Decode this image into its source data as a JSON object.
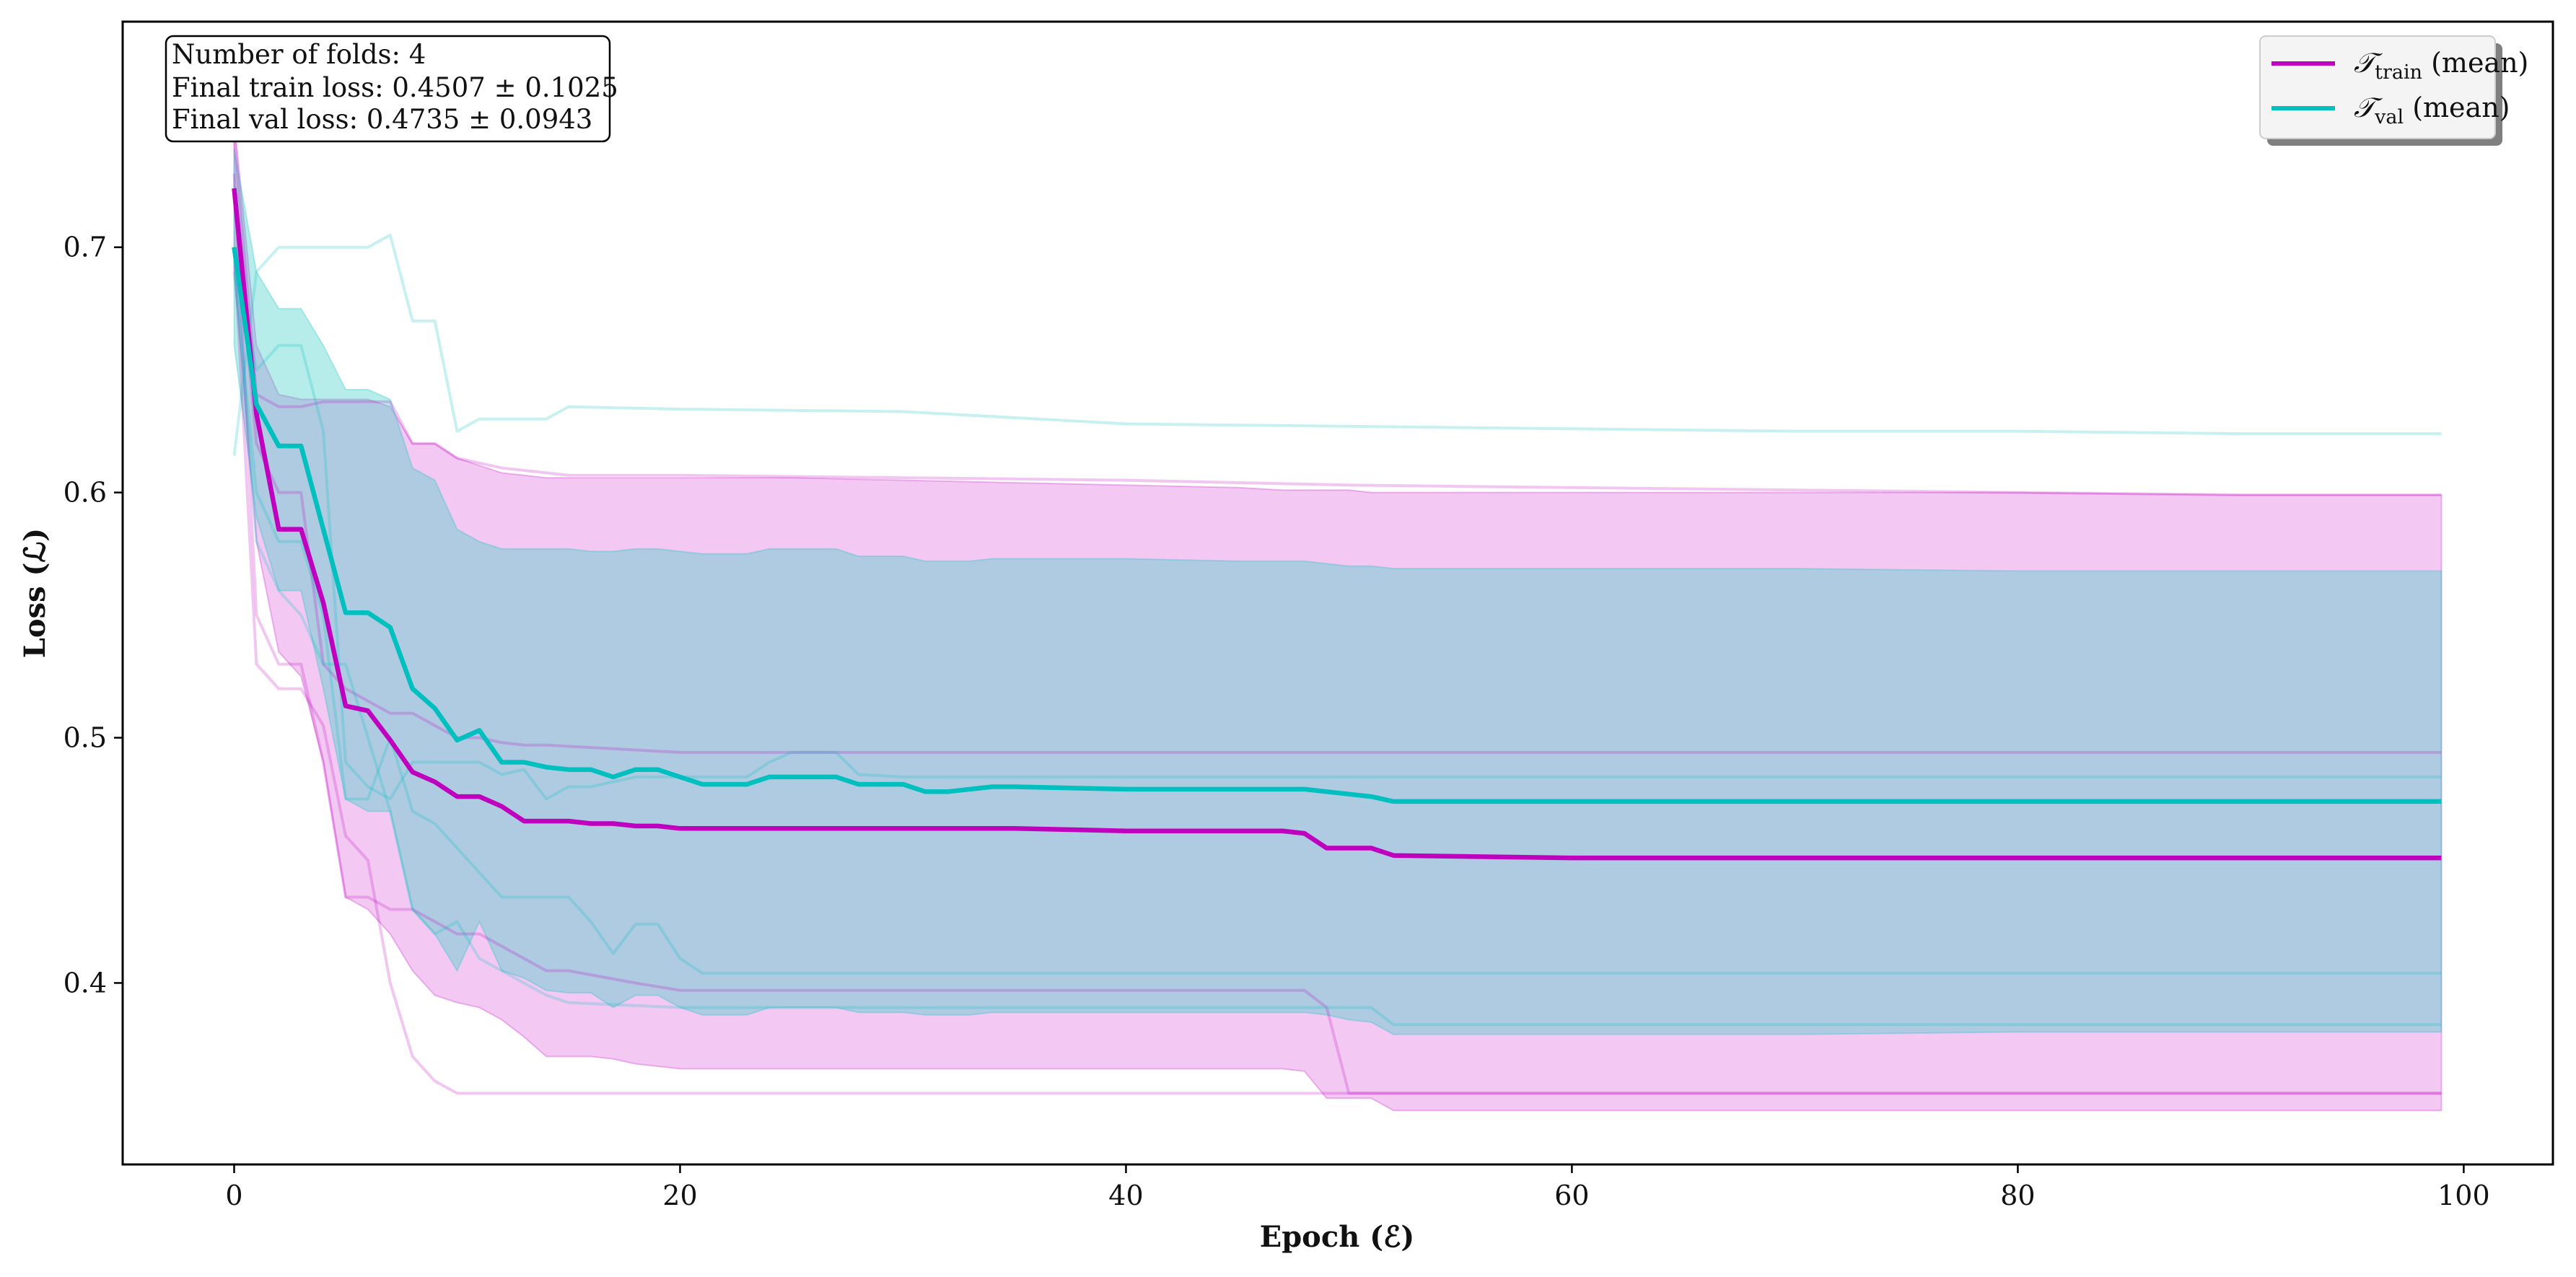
{
  "chart_data": {
    "type": "line",
    "xlabel": "Epoch (ℰ)",
    "ylabel": "Loss (ℒ)",
    "xlim": [
      -5,
      104
    ],
    "ylim": [
      0.326,
      0.792
    ],
    "x_ticks": [
      0,
      20,
      40,
      60,
      80,
      100
    ],
    "y_ticks": [
      0.4,
      0.5,
      0.6,
      0.7
    ],
    "grid": false,
    "legend_position": "top-right",
    "info_box": {
      "position": "top-left",
      "lines": [
        "Number of folds: 4",
        "Final train loss: 0.4507 ± 0.1025",
        "Final val loss: 0.4735 ± 0.0943"
      ]
    },
    "colors": {
      "train": "#bf00bf",
      "val": "#00bfbf",
      "train_band": "#e070e0",
      "val_band": "#40d0c8"
    },
    "series": [
      {
        "name": "𝒯train (mean)",
        "legend_main": "𝒯",
        "legend_sub": "train",
        "legend_suffix": " (mean)",
        "role": "train",
        "x": [
          0,
          1,
          2,
          3,
          4,
          5,
          6,
          7,
          8,
          9,
          10,
          11,
          12,
          13,
          14,
          15,
          16,
          17,
          18,
          19,
          20,
          21,
          25,
          30,
          35,
          40,
          45,
          47,
          48,
          49,
          50,
          51,
          52,
          60,
          70,
          80,
          90,
          99
        ],
        "values": [
          0.724,
          0.632,
          0.585,
          0.585,
          0.555,
          0.513,
          0.511,
          0.499,
          0.486,
          0.482,
          0.476,
          0.476,
          0.472,
          0.466,
          0.466,
          0.466,
          0.465,
          0.465,
          0.464,
          0.464,
          0.463,
          0.463,
          0.463,
          0.463,
          0.463,
          0.462,
          0.462,
          0.462,
          0.461,
          0.455,
          0.455,
          0.455,
          0.452,
          0.451,
          0.451,
          0.451,
          0.451,
          0.451
        ],
        "std_lower": [
          0.69,
          0.58,
          0.535,
          0.525,
          0.49,
          0.435,
          0.43,
          0.42,
          0.405,
          0.395,
          0.392,
          0.39,
          0.385,
          0.378,
          0.37,
          0.37,
          0.37,
          0.369,
          0.367,
          0.366,
          0.365,
          0.365,
          0.365,
          0.365,
          0.365,
          0.365,
          0.365,
          0.365,
          0.364,
          0.353,
          0.353,
          0.353,
          0.348,
          0.348,
          0.348,
          0.348,
          0.348,
          0.348
        ],
        "std_upper": [
          0.752,
          0.66,
          0.64,
          0.638,
          0.638,
          0.638,
          0.638,
          0.635,
          0.62,
          0.62,
          0.614,
          0.611,
          0.608,
          0.607,
          0.606,
          0.606,
          0.606,
          0.606,
          0.606,
          0.606,
          0.606,
          0.606,
          0.606,
          0.605,
          0.604,
          0.603,
          0.602,
          0.601,
          0.601,
          0.601,
          0.601,
          0.6,
          0.6,
          0.6,
          0.6,
          0.6,
          0.599,
          0.599
        ]
      },
      {
        "name": "𝒯val (mean)",
        "legend_main": "𝒯",
        "legend_sub": "val",
        "legend_suffix": " (mean)",
        "role": "val",
        "x": [
          0,
          1,
          2,
          3,
          4,
          5,
          6,
          7,
          8,
          9,
          10,
          11,
          12,
          13,
          14,
          15,
          16,
          17,
          18,
          19,
          20,
          21,
          22,
          23,
          24,
          25,
          26,
          27,
          28,
          29,
          30,
          31,
          32,
          33,
          34,
          35,
          40,
          45,
          48,
          49,
          50,
          51,
          52,
          53,
          55,
          60,
          70,
          80,
          90,
          99
        ],
        "values": [
          0.7,
          0.636,
          0.619,
          0.619,
          0.585,
          0.551,
          0.551,
          0.545,
          0.52,
          0.512,
          0.499,
          0.503,
          0.49,
          0.49,
          0.488,
          0.487,
          0.487,
          0.484,
          0.487,
          0.487,
          0.484,
          0.481,
          0.481,
          0.481,
          0.484,
          0.484,
          0.484,
          0.484,
          0.481,
          0.481,
          0.481,
          0.478,
          0.478,
          0.479,
          0.48,
          0.48,
          0.479,
          0.479,
          0.479,
          0.478,
          0.477,
          0.476,
          0.474,
          0.474,
          0.474,
          0.474,
          0.474,
          0.474,
          0.474,
          0.474
        ],
        "std_lower": [
          0.66,
          0.59,
          0.56,
          0.56,
          0.52,
          0.475,
          0.47,
          0.47,
          0.43,
          0.42,
          0.405,
          0.425,
          0.405,
          0.402,
          0.397,
          0.396,
          0.396,
          0.39,
          0.395,
          0.395,
          0.39,
          0.387,
          0.387,
          0.387,
          0.39,
          0.39,
          0.39,
          0.39,
          0.388,
          0.388,
          0.388,
          0.387,
          0.387,
          0.387,
          0.388,
          0.388,
          0.388,
          0.388,
          0.388,
          0.387,
          0.385,
          0.384,
          0.379,
          0.379,
          0.379,
          0.379,
          0.379,
          0.38,
          0.38,
          0.38
        ],
        "std_upper": [
          0.74,
          0.69,
          0.675,
          0.675,
          0.66,
          0.642,
          0.642,
          0.638,
          0.61,
          0.605,
          0.585,
          0.58,
          0.577,
          0.577,
          0.577,
          0.577,
          0.576,
          0.576,
          0.577,
          0.577,
          0.576,
          0.575,
          0.575,
          0.575,
          0.577,
          0.577,
          0.577,
          0.577,
          0.574,
          0.574,
          0.574,
          0.572,
          0.572,
          0.572,
          0.573,
          0.573,
          0.573,
          0.572,
          0.572,
          0.571,
          0.57,
          0.57,
          0.569,
          0.569,
          0.569,
          0.569,
          0.569,
          0.568,
          0.568,
          0.568
        ]
      }
    ],
    "fold_curves": [
      {
        "role": "train",
        "x": [
          0,
          1,
          2,
          3,
          4,
          5,
          6,
          7,
          8,
          9,
          10,
          11,
          12,
          15,
          20,
          30,
          40,
          50,
          60,
          70,
          80,
          90,
          99
        ],
        "values": [
          0.745,
          0.64,
          0.635,
          0.635,
          0.637,
          0.637,
          0.637,
          0.637,
          0.62,
          0.62,
          0.614,
          0.612,
          0.61,
          0.607,
          0.607,
          0.606,
          0.605,
          0.603,
          0.602,
          0.601,
          0.6,
          0.599,
          0.599
        ]
      },
      {
        "role": "train",
        "x": [
          0,
          1,
          2,
          3,
          4,
          5,
          6,
          7,
          8,
          9,
          10,
          11,
          12,
          13,
          14,
          20,
          30,
          40,
          50,
          60,
          70,
          80,
          90,
          99
        ],
        "values": [
          0.72,
          0.62,
          0.6,
          0.6,
          0.53,
          0.52,
          0.515,
          0.51,
          0.51,
          0.505,
          0.5,
          0.5,
          0.498,
          0.497,
          0.497,
          0.494,
          0.494,
          0.494,
          0.494,
          0.494,
          0.494,
          0.494,
          0.494,
          0.494
        ]
      },
      {
        "role": "train",
        "x": [
          0,
          1,
          2,
          3,
          4,
          5,
          6,
          7,
          8,
          9,
          10,
          11,
          12,
          13,
          14,
          15,
          18,
          20,
          30,
          40,
          48,
          49,
          50,
          51,
          52,
          60,
          70,
          80,
          90,
          99
        ],
        "values": [
          0.73,
          0.55,
          0.53,
          0.53,
          0.49,
          0.435,
          0.435,
          0.43,
          0.43,
          0.425,
          0.42,
          0.42,
          0.415,
          0.41,
          0.405,
          0.405,
          0.4,
          0.397,
          0.397,
          0.397,
          0.397,
          0.39,
          0.355,
          0.355,
          0.355,
          0.355,
          0.355,
          0.355,
          0.355,
          0.355
        ]
      },
      {
        "role": "train",
        "x": [
          0,
          1,
          2,
          3,
          4,
          5,
          6,
          7,
          8,
          9,
          10,
          11,
          12,
          13,
          15,
          20,
          30,
          40,
          50,
          60,
          70,
          80,
          90,
          99
        ],
        "values": [
          0.7,
          0.53,
          0.52,
          0.52,
          0.505,
          0.46,
          0.45,
          0.4,
          0.37,
          0.36,
          0.355,
          0.355,
          0.355,
          0.355,
          0.355,
          0.355,
          0.355,
          0.355,
          0.355,
          0.355,
          0.355,
          0.355,
          0.355,
          0.355
        ]
      },
      {
        "role": "val",
        "x": [
          0,
          1,
          2,
          3,
          4,
          5,
          6,
          7,
          8,
          9,
          10,
          11,
          12,
          13,
          14,
          15,
          20,
          30,
          40,
          50,
          60,
          70,
          80,
          90,
          99
        ],
        "values": [
          0.615,
          0.69,
          0.7,
          0.7,
          0.7,
          0.7,
          0.7,
          0.705,
          0.67,
          0.67,
          0.625,
          0.63,
          0.63,
          0.63,
          0.63,
          0.635,
          0.634,
          0.633,
          0.628,
          0.627,
          0.626,
          0.625,
          0.625,
          0.624,
          0.624
        ]
      },
      {
        "role": "val",
        "x": [
          0,
          1,
          2,
          3,
          4,
          5,
          6,
          7,
          8,
          9,
          10,
          11,
          12,
          13,
          14,
          15,
          16,
          17,
          18,
          19,
          20,
          21,
          22,
          23,
          24,
          25,
          26,
          27,
          28,
          30,
          35,
          40,
          50,
          60,
          70,
          80,
          90,
          99
        ],
        "values": [
          0.7,
          0.65,
          0.66,
          0.66,
          0.625,
          0.49,
          0.48,
          0.475,
          0.49,
          0.49,
          0.49,
          0.49,
          0.485,
          0.487,
          0.475,
          0.48,
          0.48,
          0.482,
          0.484,
          0.484,
          0.484,
          0.484,
          0.484,
          0.484,
          0.49,
          0.494,
          0.494,
          0.494,
          0.485,
          0.484,
          0.484,
          0.484,
          0.484,
          0.484,
          0.484,
          0.484,
          0.484,
          0.484
        ]
      },
      {
        "role": "val",
        "x": [
          0,
          1,
          2,
          3,
          4,
          5,
          6,
          7,
          8,
          9,
          10,
          11,
          12,
          13,
          14,
          15,
          16,
          17,
          18,
          19,
          20,
          21,
          30,
          40,
          50,
          60,
          70,
          80,
          90,
          99
        ],
        "values": [
          0.69,
          0.6,
          0.58,
          0.58,
          0.55,
          0.475,
          0.475,
          0.5,
          0.47,
          0.465,
          0.455,
          0.445,
          0.435,
          0.435,
          0.435,
          0.435,
          0.425,
          0.412,
          0.424,
          0.424,
          0.41,
          0.404,
          0.404,
          0.404,
          0.404,
          0.404,
          0.404,
          0.404,
          0.404,
          0.404
        ]
      },
      {
        "role": "val",
        "x": [
          0,
          1,
          2,
          3,
          4,
          5,
          6,
          7,
          8,
          9,
          10,
          11,
          12,
          13,
          14,
          15,
          20,
          30,
          40,
          48,
          50,
          51,
          52,
          60,
          70,
          80,
          90,
          99
        ],
        "values": [
          0.7,
          0.58,
          0.56,
          0.55,
          0.53,
          0.53,
          0.5,
          0.47,
          0.43,
          0.42,
          0.425,
          0.41,
          0.405,
          0.4,
          0.395,
          0.392,
          0.39,
          0.39,
          0.39,
          0.39,
          0.39,
          0.39,
          0.383,
          0.383,
          0.383,
          0.383,
          0.383,
          0.383
        ]
      }
    ]
  }
}
